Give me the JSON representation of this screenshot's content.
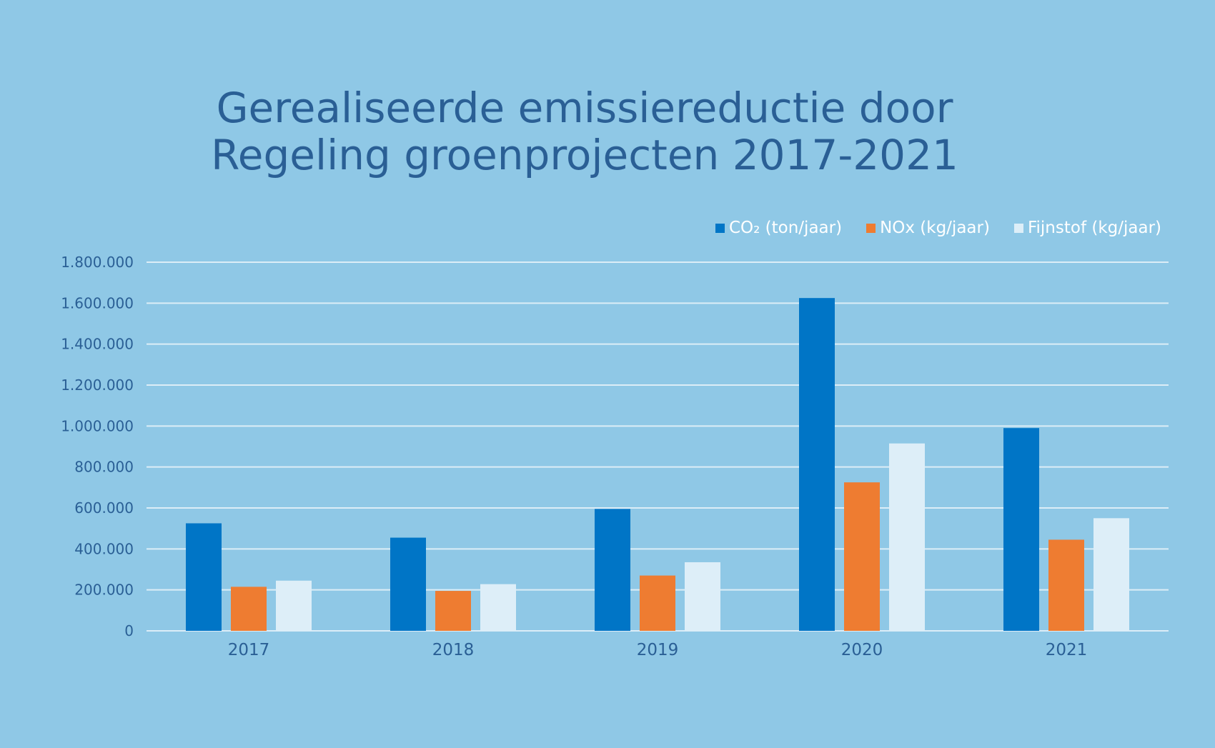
{
  "chart_data": {
    "type": "bar",
    "title_lines": [
      "Gerealiseerde emissiereductie door",
      "Regeling groenprojecten 2017-2021"
    ],
    "categories": [
      "2017",
      "2018",
      "2019",
      "2020",
      "2021"
    ],
    "series": [
      {
        "name": "CO₂ (ton/jaar)",
        "color": "#0075c6",
        "values": [
          525000,
          455000,
          595000,
          1625000,
          990000
        ]
      },
      {
        "name": "NOx (kg/jaar)",
        "color": "#ee7c31",
        "values": [
          215000,
          195000,
          270000,
          725000,
          445000
        ]
      },
      {
        "name": "Fijnstof (kg/jaar)",
        "color": "#ddeef8",
        "values": [
          245000,
          228000,
          335000,
          915000,
          550000
        ]
      }
    ],
    "y_ticks": [
      "0",
      "200.000",
      "400.000",
      "600.000",
      "800.000",
      "1.000.000",
      "1.200.000",
      "1.400.000",
      "1.600.000",
      "1.800.000"
    ],
    "ylim": [
      0,
      1800000
    ],
    "grid": true,
    "legend_position": "top-right",
    "colors": {
      "background": "#8fc8e6",
      "text": "#2a5f95",
      "grid": "#dcedf7"
    }
  }
}
